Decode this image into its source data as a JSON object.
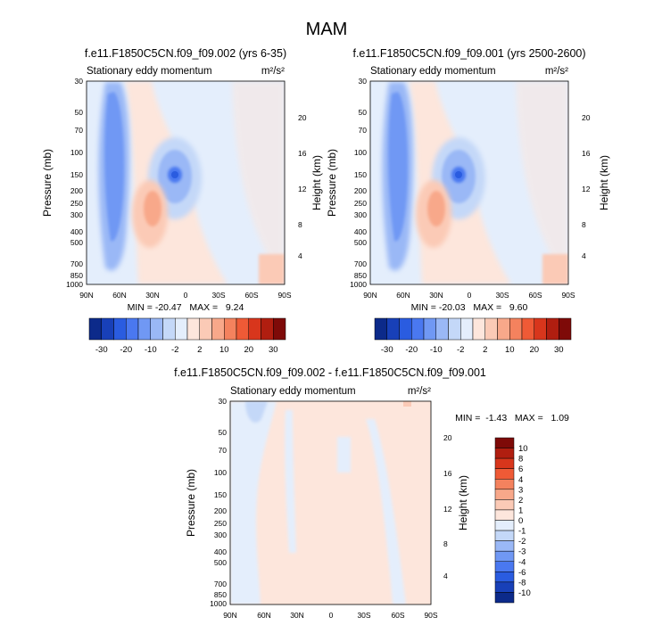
{
  "figure_title": "MAM",
  "panels": [
    {
      "title": "f.e11.F1850C5CN.f09_f09.002 (yrs 6-35)",
      "left_label": "Stationary eddy momentum",
      "right_label": "m²/s²",
      "stats": "MIN = -20.47   MAX =   9.24",
      "ylabel": "Pressure (mb)",
      "ylabel_right": "Height (km)"
    },
    {
      "title": "f.e11.F1850C5CN.f09_f09.001 (yrs 2500-2600)",
      "left_label": "Stationary eddy momentum",
      "right_label": "m²/s²",
      "stats": "MIN = -20.03   MAX =   9.60",
      "ylabel": "Pressure (mb)",
      "ylabel_right": "Height (km)"
    },
    {
      "title": "f.e11.F1850C5CN.f09_f09.002 - f.e11.F1850C5CN.f09_f09.001",
      "left_label": "Stationary eddy momentum",
      "right_label": "m²/s²",
      "stats": "MIN =  -1.43   MAX =   1.09",
      "ylabel": "Pressure (mb)",
      "ylabel_right": "Height (km)"
    }
  ],
  "chart_data": [
    {
      "type": "heatmap",
      "panel": 0,
      "x_tick_labels": [
        "90N",
        "60N",
        "30N",
        "0",
        "30S",
        "60S",
        "90S"
      ],
      "x_ticks": [
        90,
        60,
        30,
        0,
        -30,
        -60,
        -90
      ],
      "y_tick_labels": [
        "30",
        "50",
        "70",
        "100",
        "150",
        "200",
        "250",
        "300",
        "400",
        "500",
        "700",
        "850",
        "1000"
      ],
      "y_ticks_mb": [
        30,
        50,
        70,
        100,
        150,
        200,
        250,
        300,
        400,
        500,
        700,
        850,
        1000
      ],
      "y_scale": "log",
      "ylim_mb": [
        1000,
        30
      ],
      "height_tick_labels": [
        "4",
        "8",
        "12",
        "16",
        "20"
      ],
      "height_ticks_km": [
        4,
        8,
        12,
        16,
        20
      ],
      "min": -20.47,
      "max": 9.24,
      "features": [
        {
          "lat": 62,
          "p": 150,
          "sign": "negative",
          "peak": -12
        },
        {
          "lat": 12,
          "p": 150,
          "sign": "negative",
          "peak": -20
        },
        {
          "lat": 28,
          "p": 250,
          "sign": "positive",
          "peak": 8
        }
      ]
    },
    {
      "type": "heatmap",
      "panel": 1,
      "x_tick_labels": [
        "90N",
        "60N",
        "30N",
        "0",
        "30S",
        "60S",
        "90S"
      ],
      "x_ticks": [
        90,
        60,
        30,
        0,
        -30,
        -60,
        -90
      ],
      "y_tick_labels": [
        "30",
        "50",
        "70",
        "100",
        "150",
        "200",
        "250",
        "300",
        "400",
        "500",
        "700",
        "850",
        "1000"
      ],
      "y_ticks_mb": [
        30,
        50,
        70,
        100,
        150,
        200,
        250,
        300,
        400,
        500,
        700,
        850,
        1000
      ],
      "y_scale": "log",
      "ylim_mb": [
        1000,
        30
      ],
      "height_tick_labels": [
        "4",
        "8",
        "12",
        "16",
        "20"
      ],
      "height_ticks_km": [
        4,
        8,
        12,
        16,
        20
      ],
      "min": -20.03,
      "max": 9.6,
      "features": [
        {
          "lat": 62,
          "p": 150,
          "sign": "negative",
          "peak": -12
        },
        {
          "lat": 12,
          "p": 150,
          "sign": "negative",
          "peak": -20
        },
        {
          "lat": 28,
          "p": 250,
          "sign": "positive",
          "peak": 8
        }
      ]
    },
    {
      "type": "heatmap",
      "panel": 2,
      "x_tick_labels": [
        "90N",
        "60N",
        "30N",
        "0",
        "30S",
        "60S",
        "90S"
      ],
      "x_ticks": [
        90,
        60,
        30,
        0,
        -30,
        -60,
        -90
      ],
      "y_tick_labels": [
        "30",
        "50",
        "70",
        "100",
        "150",
        "200",
        "250",
        "300",
        "400",
        "500",
        "700",
        "850",
        "1000"
      ],
      "y_ticks_mb": [
        30,
        50,
        70,
        100,
        150,
        200,
        250,
        300,
        400,
        500,
        700,
        850,
        1000
      ],
      "y_scale": "log",
      "ylim_mb": [
        1000,
        30
      ],
      "height_tick_labels": [
        "4",
        "8",
        "12",
        "16",
        "20"
      ],
      "height_ticks_km": [
        4,
        8,
        12,
        16,
        20
      ],
      "min": -1.43,
      "max": 1.09
    }
  ],
  "colorbars": [
    {
      "orientation": "horizontal",
      "labels": [
        "-30",
        "-20",
        "-10",
        "-2",
        "2",
        "10",
        "20",
        "30"
      ],
      "colors": [
        "#0c2a8a",
        "#1840b8",
        "#2a5ce0",
        "#4a78f0",
        "#7098f4",
        "#9ab8f6",
        "#c4d8f8",
        "#e4eefc",
        "#fde6dc",
        "#fbcab6",
        "#f8a88a",
        "#f4825e",
        "#ef5a36",
        "#d8361c",
        "#b01e10",
        "#7e0a08"
      ]
    },
    {
      "orientation": "horizontal",
      "labels": [
        "-30",
        "-20",
        "-10",
        "-2",
        "2",
        "10",
        "20",
        "30"
      ],
      "colors": [
        "#0c2a8a",
        "#1840b8",
        "#2a5ce0",
        "#4a78f0",
        "#7098f4",
        "#9ab8f6",
        "#c4d8f8",
        "#e4eefc",
        "#fde6dc",
        "#fbcab6",
        "#f8a88a",
        "#f4825e",
        "#ef5a36",
        "#d8361c",
        "#b01e10",
        "#7e0a08"
      ]
    },
    {
      "orientation": "vertical",
      "labels": [
        "10",
        "8",
        "6",
        "4",
        "3",
        "2",
        "1",
        "0",
        "-1",
        "-2",
        "-3",
        "-4",
        "-6",
        "-8",
        "-10"
      ],
      "colors": [
        "#7e0a08",
        "#b01e10",
        "#d8361c",
        "#ef5a36",
        "#f4825e",
        "#f8a88a",
        "#fbcab6",
        "#fde6dc",
        "#e4eefc",
        "#c4d8f8",
        "#9ab8f6",
        "#7098f4",
        "#4a78f0",
        "#2a5ce0",
        "#1840b8",
        "#0c2a8a"
      ]
    }
  ]
}
